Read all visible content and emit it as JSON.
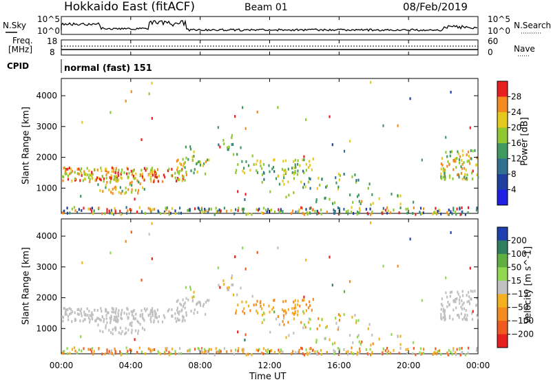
{
  "header": {
    "radar": "Hokkaido East (fitACF)",
    "beam": "Beam 01",
    "date": "08/Feb/2019"
  },
  "noise_panel": {
    "left_label": "N.Sky",
    "right_label": "N.Search",
    "ticks": [
      "10^5",
      "10^0"
    ]
  },
  "freq_panel": {
    "left_label_1": "Freq.",
    "left_label_2": "[MHz]",
    "left_ticks": [
      "18",
      "8"
    ],
    "right_label": "Nave",
    "right_ticks": [
      "60",
      "0"
    ]
  },
  "cpid_panel": {
    "label": "CPID",
    "mode": "normal (fast) 151"
  },
  "chart_data": [
    {
      "type": "heatmap",
      "name": "power",
      "ylabel": "Slant Range [km]",
      "xlabel": "Time UT",
      "x_ticks": [
        "00:00",
        "04:00",
        "08:00",
        "12:00",
        "16:00",
        "20:00",
        "00:00"
      ],
      "xlim_hours": [
        0,
        24
      ],
      "ylim_km": [
        180,
        4560
      ],
      "y_ticks": [
        1000,
        2000,
        3000,
        4000
      ],
      "colorbar_label": "Power [dB]",
      "colorbar_ticks": [
        "4",
        "8",
        "12",
        "16",
        "20",
        "24",
        "28"
      ],
      "colors": [
        "#1f1fe6",
        "#1f3fa0",
        "#2f6f8f",
        "#3f9a5f",
        "#8fc82f",
        "#e6c81f",
        "#f58a1f",
        "#e81f1f"
      ]
    },
    {
      "type": "heatmap",
      "name": "velocity",
      "ylabel": "Slant Range [km]",
      "xlabel": "Time UT",
      "x_ticks": [
        "00:00",
        "04:00",
        "08:00",
        "12:00",
        "16:00",
        "20:00",
        "00:00"
      ],
      "xlim_hours": [
        0,
        24
      ],
      "ylim_km": [
        180,
        4560
      ],
      "y_ticks": [
        1000,
        2000,
        3000,
        4000
      ],
      "colorbar_label": "Velocity [m s^-1]",
      "colorbar_ticks": [
        "200",
        "100",
        "50",
        "15",
        "−15",
        "−50",
        "−100",
        "−200"
      ],
      "colors": [
        "#1f3fb0",
        "#2f7f5f",
        "#5faf3f",
        "#8fd84f",
        "#c0c0c0",
        "#f5b01f",
        "#f58a1f",
        "#f05a1f",
        "#e81f1f"
      ]
    }
  ],
  "time_axis_label": "Time UT"
}
